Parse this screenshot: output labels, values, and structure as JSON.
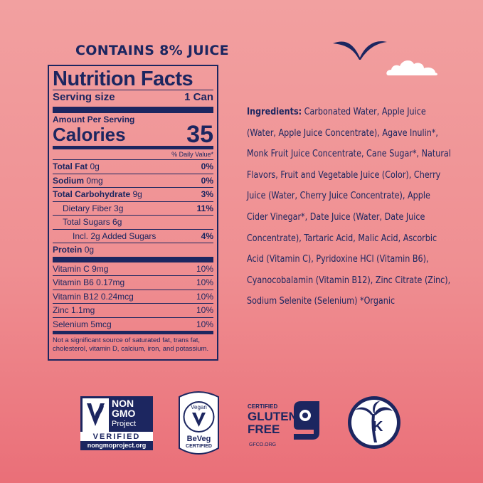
{
  "header": {
    "juice_text": "CONTAINS 8% JUICE"
  },
  "nutrition": {
    "title": "Nutrition Facts",
    "serving_label": "Serving size",
    "serving_value": "1 Can",
    "amount_per_serving": "Amount Per Serving",
    "calories_label": "Calories",
    "calories_value": "35",
    "dv_header": "% Daily Value*",
    "rows": [
      {
        "label": "Total Fat",
        "amount": "0g",
        "dv": "0%",
        "bold": true
      },
      {
        "label": "Sodium",
        "amount": "0mg",
        "dv": "0%",
        "bold": true
      },
      {
        "label": "Total Carbohydrate",
        "amount": "9g",
        "dv": "3%",
        "bold": true
      },
      {
        "label": "Dietary Fiber",
        "amount": "3g",
        "dv": "11%"
      },
      {
        "label": "Total Sugars",
        "amount": "6g",
        "dv": ""
      },
      {
        "label": "Incl. 2g Added Sugars",
        "amount": "",
        "dv": "4%"
      },
      {
        "label": "Protein",
        "amount": "0g",
        "dv": "",
        "bold": true
      }
    ],
    "vitamins": [
      {
        "label": "Vitamin C 9mg",
        "dv": "10%"
      },
      {
        "label": "Vitamin B6 0.17mg",
        "dv": "10%"
      },
      {
        "label": "Vitamin B12 0.24mcg",
        "dv": "10%"
      },
      {
        "label": "Zinc 1.1mg",
        "dv": "10%"
      },
      {
        "label": "Selenium 5mcg",
        "dv": "10%"
      }
    ],
    "footnote": "Not a significant source of saturated fat, trans fat, cholesterol, vitamin D, calcium, iron, and potassium."
  },
  "ingredients": {
    "lead": "Ingredients:",
    "text": "Carbonated Water, Apple Juice (Water, Apple Juice Concentrate), Agave Inulin*, Monk Fruit Juice Concentrate, Cane Sugar*, Natural Flavors, Fruit and Vegetable Juice (Color), Cherry Juice (Water, Cherry Juice Concentrate), Apple Cider Vinegar*, Date Juice (Water, Date Juice Concentrate), Tartaric Acid, Malic Acid, Ascorbic Acid (Vitamin C), Pyridoxine HCl (Vitamin B6), Cyanocobalamin (Vitamin B12), Zinc Citrate (Zinc), Sodium Selenite (Selenium) *Organic"
  },
  "badges": {
    "nongmo": {
      "line1": "NON",
      "line2": "GMO",
      "line3": "Project",
      "verified": "VERIFIED",
      "url": "nongmoproject.org"
    },
    "vegan": {
      "top": "Vegan",
      "mid": "BeVeg",
      "bottom": "CERTIFIED"
    },
    "gluten": {
      "certified": "CERTIFIED",
      "line1": "GLUTEN",
      "line2": "FREE",
      "url": "GFCO.ORG"
    },
    "kosher": {
      "letter": "K"
    }
  },
  "colors": {
    "navy": "#1c2660",
    "bg_top": "#f2a0a0",
    "bg_bottom": "#ea6f78"
  }
}
